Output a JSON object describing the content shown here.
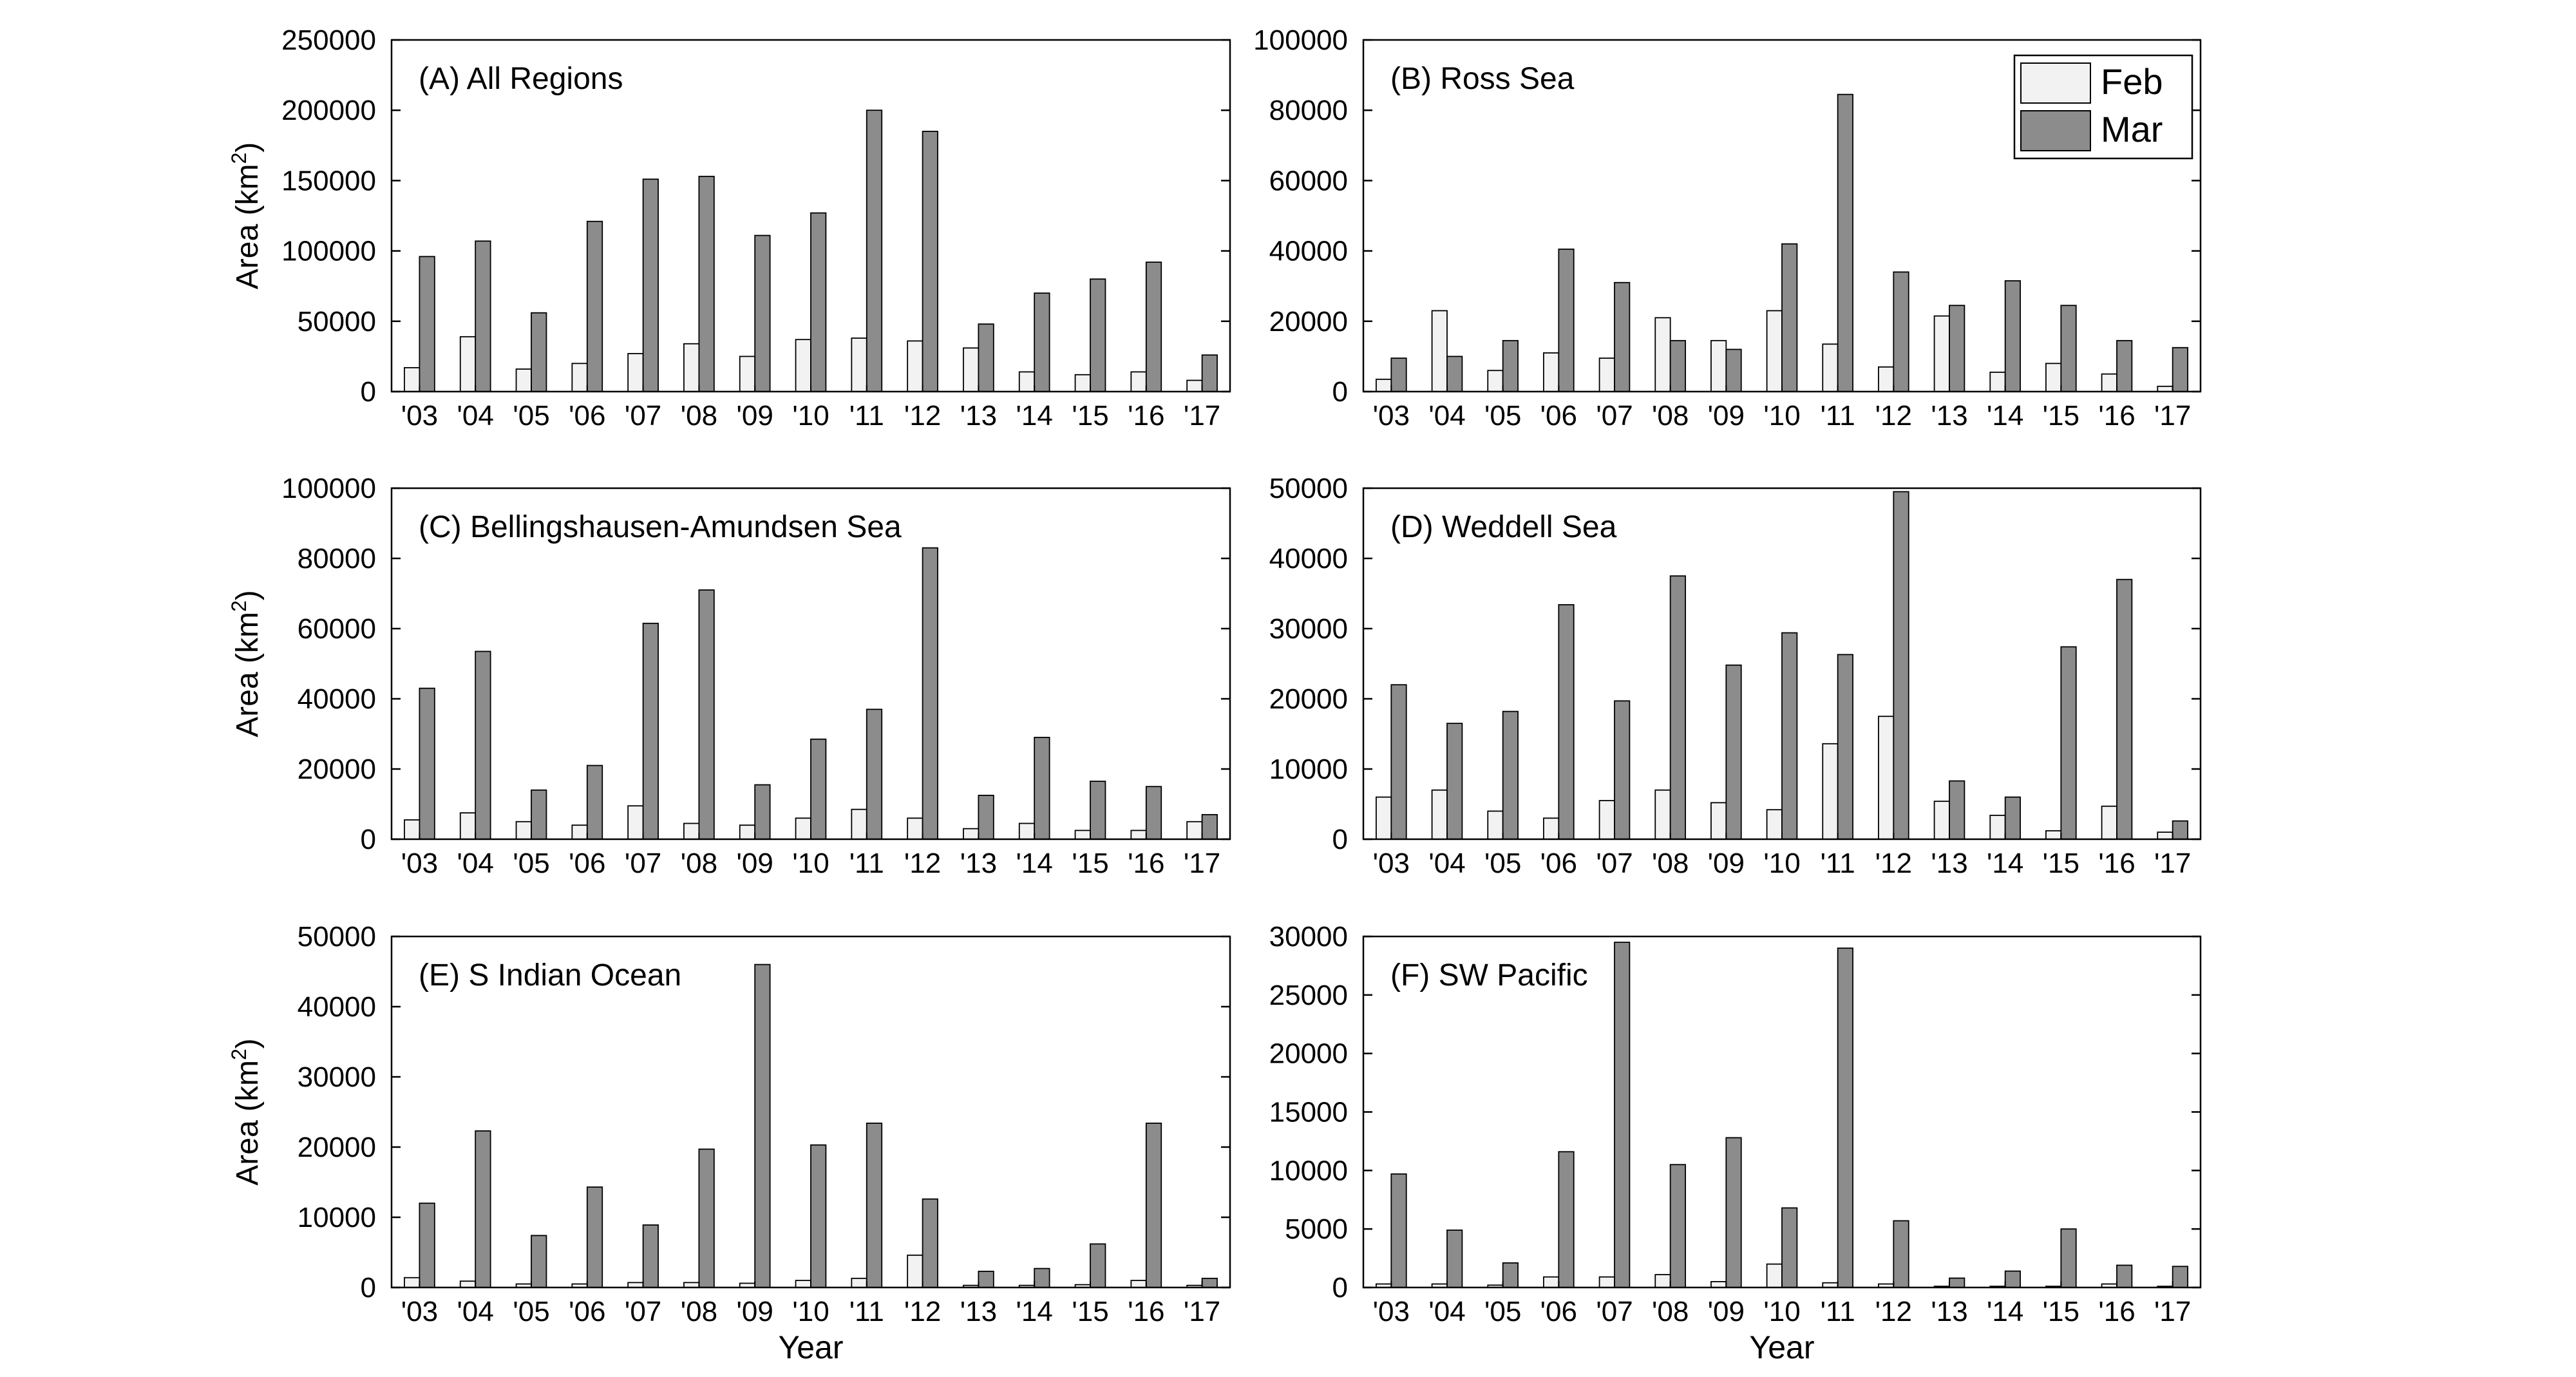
{
  "legend": {
    "placement": "top-right",
    "entries": [
      {
        "label": "Feb",
        "color": "#f2f2f2"
      },
      {
        "label": "Mar",
        "color": "#8c8c8c"
      }
    ]
  },
  "axis_text": {
    "xlabel": "Year",
    "ylabel_main": "Area (km",
    "ylabel_sup": "2",
    "ylabel_close": ")"
  },
  "chart_data": [
    {
      "type": "bar",
      "title": "(A) All Regions",
      "categories": [
        "'03",
        "'04",
        "'05",
        "'06",
        "'07",
        "'08",
        "'09",
        "'10",
        "'11",
        "'12",
        "'13",
        "'14",
        "'15",
        "'16",
        "'17"
      ],
      "ylim": [
        0,
        250000
      ],
      "yticks": [
        "0",
        "50000",
        "100000",
        "150000",
        "200000",
        "250000"
      ],
      "ylabel": "Area (km2)",
      "xlabel": "",
      "series": [
        {
          "name": "Feb",
          "values": [
            17000,
            39000,
            16000,
            20000,
            27000,
            34000,
            25000,
            37000,
            38000,
            36000,
            31000,
            14000,
            12000,
            14000,
            8000
          ]
        },
        {
          "name": "Mar",
          "values": [
            96000,
            107000,
            56000,
            121000,
            151000,
            153000,
            111000,
            127000,
            200000,
            185000,
            48000,
            70000,
            80000,
            92000,
            26000
          ]
        }
      ]
    },
    {
      "type": "bar",
      "title": "(B) Ross Sea",
      "categories": [
        "'03",
        "'04",
        "'05",
        "'06",
        "'07",
        "'08",
        "'09",
        "'10",
        "'11",
        "'12",
        "'13",
        "'14",
        "'15",
        "'16",
        "'17"
      ],
      "ylim": [
        0,
        100000
      ],
      "yticks": [
        "0",
        "20000",
        "40000",
        "60000",
        "80000",
        "100000"
      ],
      "ylabel": "",
      "xlabel": "",
      "series": [
        {
          "name": "Feb",
          "values": [
            3500,
            23000,
            6000,
            11000,
            9500,
            21000,
            14500,
            23000,
            13500,
            7000,
            21500,
            5500,
            8000,
            5000,
            1500
          ]
        },
        {
          "name": "Mar",
          "values": [
            9500,
            10000,
            14500,
            40500,
            31000,
            14500,
            12000,
            42000,
            84500,
            34000,
            24500,
            31500,
            24500,
            14500,
            12500
          ]
        }
      ]
    },
    {
      "type": "bar",
      "title": "(C) Bellingshausen-Amundsen Sea",
      "categories": [
        "'03",
        "'04",
        "'05",
        "'06",
        "'07",
        "'08",
        "'09",
        "'10",
        "'11",
        "'12",
        "'13",
        "'14",
        "'15",
        "'16",
        "'17"
      ],
      "ylim": [
        0,
        100000
      ],
      "yticks": [
        "0",
        "20000",
        "40000",
        "60000",
        "80000",
        "100000"
      ],
      "ylabel": "Area (km2)",
      "xlabel": "",
      "series": [
        {
          "name": "Feb",
          "values": [
            5500,
            7500,
            5000,
            4000,
            9500,
            4500,
            4000,
            6000,
            8500,
            6000,
            3000,
            4500,
            2500,
            2500,
            5000
          ]
        },
        {
          "name": "Mar",
          "values": [
            43000,
            53500,
            14000,
            21000,
            61500,
            71000,
            15500,
            28500,
            37000,
            83000,
            12500,
            29000,
            16500,
            15000,
            7000
          ]
        }
      ]
    },
    {
      "type": "bar",
      "title": "(D) Weddell Sea",
      "categories": [
        "'03",
        "'04",
        "'05",
        "'06",
        "'07",
        "'08",
        "'09",
        "'10",
        "'11",
        "'12",
        "'13",
        "'14",
        "'15",
        "'16",
        "'17"
      ],
      "ylim": [
        0,
        50000
      ],
      "yticks": [
        "0",
        "10000",
        "20000",
        "30000",
        "40000",
        "50000"
      ],
      "ylabel": "",
      "xlabel": "",
      "series": [
        {
          "name": "Feb",
          "values": [
            6000,
            7000,
            4000,
            3000,
            5500,
            7000,
            5200,
            4200,
            13600,
            17500,
            5400,
            3400,
            1200,
            4700,
            1000
          ]
        },
        {
          "name": "Mar",
          "values": [
            22000,
            16500,
            18200,
            33400,
            19700,
            37500,
            24800,
            29400,
            26300,
            49500,
            8300,
            6000,
            27400,
            37000,
            2600
          ]
        }
      ]
    },
    {
      "type": "bar",
      "title": "(E) S Indian Ocean",
      "categories": [
        "'03",
        "'04",
        "'05",
        "'06",
        "'07",
        "'08",
        "'09",
        "'10",
        "'11",
        "'12",
        "'13",
        "'14",
        "'15",
        "'16",
        "'17"
      ],
      "ylim": [
        0,
        50000
      ],
      "yticks": [
        "0",
        "10000",
        "20000",
        "30000",
        "40000",
        "50000"
      ],
      "ylabel": "Area (km2)",
      "xlabel": "Year",
      "series": [
        {
          "name": "Feb",
          "values": [
            1400,
            900,
            500,
            500,
            700,
            700,
            600,
            1000,
            1300,
            4600,
            300,
            300,
            400,
            1000,
            300
          ]
        },
        {
          "name": "Mar",
          "values": [
            12000,
            22300,
            7400,
            14300,
            8900,
            19700,
            46000,
            20300,
            23400,
            12600,
            2300,
            2700,
            6200,
            23400,
            1300
          ]
        }
      ]
    },
    {
      "type": "bar",
      "title": "(F) SW Pacific",
      "categories": [
        "'03",
        "'04",
        "'05",
        "'06",
        "'07",
        "'08",
        "'09",
        "'10",
        "'11",
        "'12",
        "'13",
        "'14",
        "'15",
        "'16",
        "'17"
      ],
      "ylim": [
        0,
        30000
      ],
      "yticks": [
        "0",
        "5000",
        "10000",
        "15000",
        "20000",
        "25000",
        "30000"
      ],
      "ylabel": "",
      "xlabel": "Year",
      "series": [
        {
          "name": "Feb",
          "values": [
            300,
            300,
            200,
            900,
            900,
            1100,
            500,
            2000,
            400,
            300,
            100,
            100,
            100,
            300,
            100
          ]
        },
        {
          "name": "Mar",
          "values": [
            9700,
            4900,
            2100,
            11600,
            29500,
            10500,
            12800,
            6800,
            29000,
            5700,
            800,
            1400,
            5000,
            1900,
            1800
          ]
        }
      ]
    }
  ]
}
